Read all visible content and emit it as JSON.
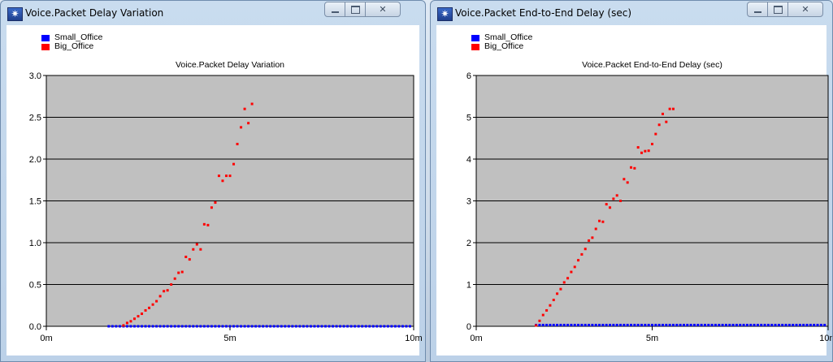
{
  "windows": [
    {
      "title": "Voice.Packet Delay Variation",
      "controls": {
        "minimize": "minimize",
        "maximize": "maximize",
        "close": "close"
      },
      "icon": "app-star-icon"
    },
    {
      "title": "Voice.Packet End-to-End Delay (sec)",
      "controls": {
        "minimize": "minimize",
        "maximize": "maximize",
        "close": "close"
      },
      "icon": "app-star-icon"
    }
  ],
  "colors": {
    "small_office": "#0000ff",
    "big_office": "#ff0000",
    "plot_bg": "#c0c0c0"
  },
  "chart_data": [
    {
      "type": "scatter",
      "title": "Voice.Packet Delay Variation",
      "xlabel": "",
      "ylabel": "",
      "xlim": [
        0,
        10
      ],
      "ylim": [
        0,
        3
      ],
      "x_ticks": [
        "0m",
        "5m",
        "10m"
      ],
      "x_tick_values": [
        0,
        5,
        10
      ],
      "y_ticks": [
        "0.0",
        "0.5",
        "1.0",
        "1.5",
        "2.0",
        "2.5",
        "3.0"
      ],
      "y_tick_values": [
        0,
        0.5,
        1.0,
        1.5,
        2.0,
        2.5,
        3.0
      ],
      "grid": "horizontal",
      "legend_position": "top-left",
      "series": [
        {
          "name": "Small_Office",
          "color": "#0000ff",
          "x": [
            1.7,
            1.8,
            1.9,
            2.0,
            2.1,
            2.2,
            2.3,
            2.4,
            2.5,
            2.6,
            2.7,
            2.8,
            2.9,
            3.0,
            3.1,
            3.2,
            3.3,
            3.4,
            3.5,
            3.6,
            3.7,
            3.8,
            3.9,
            4.0,
            4.1,
            4.2,
            4.3,
            4.4,
            4.5,
            4.6,
            4.7,
            4.8,
            4.9,
            5.0,
            5.1,
            5.2,
            5.3,
            5.4,
            5.5,
            5.6,
            5.7,
            5.8,
            5.9,
            6.0,
            6.1,
            6.2,
            6.3,
            6.4,
            6.5,
            6.6,
            6.7,
            6.8,
            6.9,
            7.0,
            7.1,
            7.2,
            7.3,
            7.4,
            7.5,
            7.6,
            7.7,
            7.8,
            7.9,
            8.0,
            8.1,
            8.2,
            8.3,
            8.4,
            8.5,
            8.6,
            8.7,
            8.8,
            8.9,
            9.0,
            9.1,
            9.2,
            9.3,
            9.4,
            9.5,
            9.6,
            9.7,
            9.8,
            9.9
          ],
          "y": [
            0,
            0,
            0,
            0,
            0,
            0,
            0,
            0,
            0,
            0,
            0,
            0,
            0,
            0,
            0,
            0,
            0,
            0,
            0,
            0,
            0,
            0,
            0,
            0,
            0,
            0,
            0,
            0,
            0,
            0,
            0,
            0,
            0,
            0,
            0,
            0,
            0,
            0,
            0,
            0,
            0,
            0,
            0,
            0,
            0,
            0,
            0,
            0,
            0,
            0,
            0,
            0,
            0,
            0,
            0,
            0,
            0,
            0,
            0,
            0,
            0,
            0,
            0,
            0,
            0,
            0,
            0,
            0,
            0,
            0,
            0,
            0,
            0,
            0,
            0,
            0,
            0,
            0,
            0,
            0,
            0,
            0,
            0
          ]
        },
        {
          "name": "Big_Office",
          "color": "#ff0000",
          "x": [
            2.1,
            2.2,
            2.3,
            2.4,
            2.5,
            2.6,
            2.7,
            2.8,
            2.9,
            3.0,
            3.1,
            3.2,
            3.3,
            3.4,
            3.5,
            3.6,
            3.7,
            3.8,
            3.9,
            4.0,
            4.1,
            4.2,
            4.3,
            4.4,
            4.5,
            4.6,
            4.7,
            4.8,
            4.9,
            5.0,
            5.1,
            5.2,
            5.3,
            5.4,
            5.5,
            5.6
          ],
          "y": [
            0.01,
            0.04,
            0.06,
            0.09,
            0.12,
            0.15,
            0.19,
            0.22,
            0.26,
            0.3,
            0.36,
            0.42,
            0.43,
            0.5,
            0.57,
            0.64,
            0.65,
            0.83,
            0.8,
            0.92,
            0.98,
            0.92,
            1.22,
            1.21,
            1.42,
            1.48,
            1.8,
            1.74,
            1.8,
            1.8,
            1.94,
            2.18,
            2.38,
            2.6,
            2.43,
            2.66
          ]
        }
      ]
    },
    {
      "type": "scatter",
      "title": "Voice.Packet End-to-End Delay (sec)",
      "xlabel": "",
      "ylabel": "",
      "xlim": [
        0,
        10
      ],
      "ylim": [
        0,
        6
      ],
      "x_ticks": [
        "0m",
        "5m",
        "10m"
      ],
      "x_tick_values": [
        0,
        5,
        10
      ],
      "y_ticks": [
        "0",
        "1",
        "2",
        "3",
        "4",
        "5",
        "6"
      ],
      "y_tick_values": [
        0,
        1,
        2,
        3,
        4,
        5,
        6
      ],
      "grid": "horizontal",
      "legend_position": "top-left",
      "series": [
        {
          "name": "Small_Office",
          "color": "#0000ff",
          "x": [
            1.7,
            1.8,
            1.9,
            2.0,
            2.1,
            2.2,
            2.3,
            2.4,
            2.5,
            2.6,
            2.7,
            2.8,
            2.9,
            3.0,
            3.1,
            3.2,
            3.3,
            3.4,
            3.5,
            3.6,
            3.7,
            3.8,
            3.9,
            4.0,
            4.1,
            4.2,
            4.3,
            4.4,
            4.5,
            4.6,
            4.7,
            4.8,
            4.9,
            5.0,
            5.1,
            5.2,
            5.3,
            5.4,
            5.5,
            5.6,
            5.7,
            5.8,
            5.9,
            6.0,
            6.1,
            6.2,
            6.3,
            6.4,
            6.5,
            6.6,
            6.7,
            6.8,
            6.9,
            7.0,
            7.1,
            7.2,
            7.3,
            7.4,
            7.5,
            7.6,
            7.7,
            7.8,
            7.9,
            8.0,
            8.1,
            8.2,
            8.3,
            8.4,
            8.5,
            8.6,
            8.7,
            8.8,
            8.9,
            9.0,
            9.1,
            9.2,
            9.3,
            9.4,
            9.5,
            9.6,
            9.7,
            9.8,
            9.9
          ],
          "y": [
            0.03,
            0.03,
            0.03,
            0.03,
            0.03,
            0.03,
            0.03,
            0.03,
            0.03,
            0.03,
            0.03,
            0.03,
            0.03,
            0.03,
            0.03,
            0.03,
            0.03,
            0.03,
            0.03,
            0.03,
            0.03,
            0.03,
            0.03,
            0.03,
            0.03,
            0.03,
            0.03,
            0.03,
            0.03,
            0.03,
            0.03,
            0.03,
            0.03,
            0.03,
            0.03,
            0.03,
            0.03,
            0.03,
            0.03,
            0.03,
            0.03,
            0.03,
            0.03,
            0.03,
            0.03,
            0.03,
            0.03,
            0.03,
            0.03,
            0.03,
            0.03,
            0.03,
            0.03,
            0.03,
            0.03,
            0.03,
            0.03,
            0.03,
            0.03,
            0.03,
            0.03,
            0.03,
            0.03,
            0.03,
            0.03,
            0.03,
            0.03,
            0.03,
            0.03,
            0.03,
            0.03,
            0.03,
            0.03,
            0.03,
            0.03,
            0.03,
            0.03,
            0.03,
            0.03,
            0.03,
            0.03,
            0.03,
            0.03
          ]
        },
        {
          "name": "Big_Office",
          "color": "#ff0000",
          "x": [
            1.7,
            1.8,
            1.9,
            2.0,
            2.1,
            2.2,
            2.3,
            2.4,
            2.5,
            2.6,
            2.7,
            2.8,
            2.9,
            3.0,
            3.1,
            3.2,
            3.3,
            3.4,
            3.5,
            3.6,
            3.7,
            3.8,
            3.9,
            4.0,
            4.1,
            4.2,
            4.3,
            4.4,
            4.5,
            4.6,
            4.7,
            4.8,
            4.9,
            5.0,
            5.1,
            5.2,
            5.3,
            5.4,
            5.5,
            5.6
          ],
          "y": [
            0.02,
            0.13,
            0.27,
            0.38,
            0.5,
            0.63,
            0.78,
            0.89,
            1.05,
            1.15,
            1.3,
            1.42,
            1.58,
            1.72,
            1.85,
            2.05,
            2.12,
            2.33,
            2.52,
            2.5,
            2.92,
            2.84,
            3.05,
            3.13,
            3.0,
            3.52,
            3.44,
            3.8,
            3.78,
            4.28,
            4.15,
            4.19,
            4.2,
            4.36,
            4.6,
            4.82,
            5.08,
            4.89,
            5.2,
            5.2
          ]
        }
      ]
    }
  ]
}
